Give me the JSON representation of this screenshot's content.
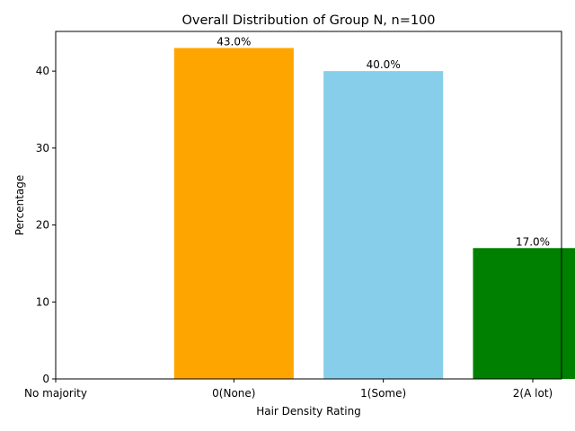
{
  "chart_data": {
    "type": "bar",
    "title": "Overall Distribution of Group N, n=100",
    "xlabel": "Hair Density Rating",
    "ylabel": "Percentage",
    "categories": [
      "No majority",
      "0(None)",
      "1(Some)",
      "2(A lot)"
    ],
    "values": [
      0,
      43.0,
      40.0,
      17.0
    ],
    "data_labels": [
      "",
      "43.0%",
      "40.0%",
      "17.0%"
    ],
    "colors": [
      "#ffffff",
      "#ffa500",
      "#87ceeb",
      "#008000"
    ],
    "ylim": [
      0,
      45.15
    ],
    "yticks": [
      0,
      10,
      20,
      30,
      40
    ],
    "grid": false,
    "legend": "none"
  }
}
